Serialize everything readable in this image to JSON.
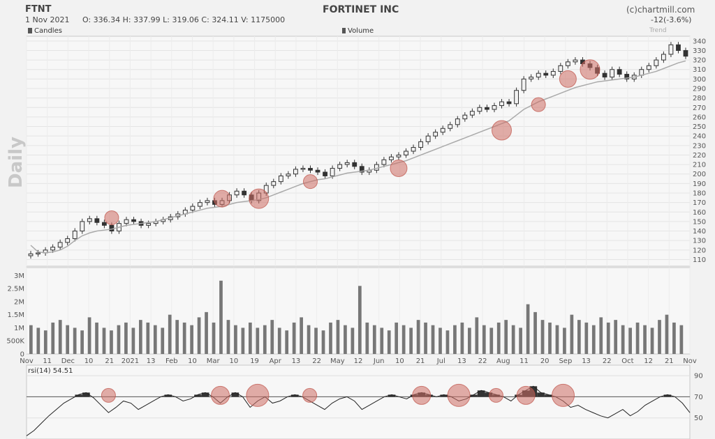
{
  "header": {
    "ticker": "FTNT",
    "company": "FORTINET INC",
    "credit": "(c)chartmill.com",
    "date": "1 Nov 2021",
    "ohlcv": "O: 336.34  H: 337.99  L: 319.06  C: 324.11  V: 1175000",
    "change": "-12(-3.6%)",
    "side_label": "Daily"
  },
  "legend": {
    "candles": "Candles",
    "volume": "Volume",
    "trend": "Trend"
  },
  "rsi_label": "rsi(14) 54.51",
  "chart_data": [
    {
      "type": "candlestick",
      "panel": "price",
      "ylim": [
        103,
        345
      ],
      "yticks": [
        110,
        120,
        130,
        140,
        150,
        160,
        170,
        180,
        190,
        200,
        210,
        220,
        230,
        240,
        250,
        260,
        270,
        280,
        290,
        300,
        310,
        320,
        330,
        340
      ],
      "x_range": [
        "Nov 2020",
        "Nov 1 2021"
      ],
      "xticks": [
        "Nov",
        "11",
        "Dec",
        "10",
        "21",
        "2021",
        "13",
        "Feb",
        "10",
        "Mar",
        "10",
        "19",
        "Apr",
        "13",
        "22",
        "May",
        "12",
        "Jun",
        "10",
        "21",
        "Jul",
        "13",
        "22",
        "Aug",
        "11",
        "20",
        "Sep",
        "13",
        "22",
        "Oct",
        "12",
        "21",
        "Nov"
      ],
      "close_series": [
        116,
        117,
        120,
        123,
        128,
        132,
        140,
        150,
        153,
        149,
        146,
        140,
        148,
        152,
        150,
        146,
        148,
        150,
        152,
        155,
        158,
        162,
        166,
        170,
        172,
        168,
        172,
        178,
        182,
        178,
        172,
        180,
        188,
        192,
        198,
        200,
        205,
        206,
        204,
        202,
        198,
        206,
        210,
        212,
        208,
        202,
        204,
        210,
        215,
        218,
        220,
        224,
        228,
        234,
        240,
        244,
        248,
        252,
        258,
        262,
        266,
        270,
        268,
        272,
        276,
        274,
        288,
        300,
        302,
        306,
        304,
        308,
        314,
        318,
        320,
        316,
        312,
        306,
        302,
        310,
        305,
        300,
        304,
        310,
        314,
        320,
        326,
        336,
        330,
        324
      ],
      "trend_series": [
        125,
        118,
        117,
        118,
        120,
        124,
        130,
        135,
        138,
        140,
        141,
        142,
        144,
        146,
        147,
        148,
        149,
        150,
        152,
        154,
        156,
        158,
        160,
        162,
        164,
        165,
        166,
        168,
        170,
        171,
        172,
        173,
        175,
        178,
        181,
        184,
        187,
        190,
        192,
        194,
        195,
        197,
        199,
        201,
        202,
        203,
        204,
        206,
        208,
        210,
        212,
        214,
        217,
        220,
        223,
        226,
        229,
        232,
        235,
        238,
        241,
        244,
        247,
        250,
        253,
        256,
        262,
        268,
        272,
        276,
        279,
        282,
        285,
        288,
        291,
        293,
        295,
        297,
        298,
        299,
        300,
        301,
        302,
        304,
        306,
        308,
        311,
        314,
        317,
        319
      ],
      "highlights": [
        154,
        174,
        174,
        192,
        206,
        246,
        273,
        300,
        310
      ],
      "series": [
        {
          "name": "Candles"
        },
        {
          "name": "Trend"
        }
      ]
    },
    {
      "type": "bar",
      "panel": "volume",
      "ylabel": "Volume",
      "ytick_labels": [
        "0",
        "500K",
        "1M",
        "1.5M",
        "2M",
        "2.5M",
        "3M"
      ],
      "ylim": [
        0,
        3300000
      ],
      "values": [
        1.1,
        1.0,
        0.9,
        1.2,
        1.3,
        1.1,
        1.0,
        0.9,
        1.4,
        1.2,
        1.0,
        0.9,
        1.1,
        1.2,
        1.0,
        1.3,
        1.2,
        1.1,
        1.0,
        1.5,
        1.3,
        1.2,
        1.1,
        1.4,
        1.6,
        1.2,
        2.8,
        1.3,
        1.1,
        1.0,
        1.2,
        1.0,
        1.1,
        1.3,
        1.0,
        0.9,
        1.2,
        1.4,
        1.1,
        1.0,
        0.9,
        1.2,
        1.3,
        1.1,
        1.0,
        2.6,
        1.2,
        1.1,
        1.0,
        0.9,
        1.2,
        1.1,
        1.0,
        1.3,
        1.2,
        1.1,
        1.0,
        0.9,
        1.1,
        1.2,
        1.0,
        1.4,
        1.1,
        1.0,
        1.2,
        1.3,
        1.1,
        1.0,
        1.9,
        1.6,
        1.3,
        1.2,
        1.1,
        1.0,
        1.5,
        1.3,
        1.2,
        1.1,
        1.4,
        1.2,
        1.3,
        1.1,
        1.0,
        1.2,
        1.1,
        1.0,
        1.3,
        1.5,
        1.2,
        1.1
      ]
    },
    {
      "type": "line",
      "panel": "rsi",
      "ylim": [
        30,
        100
      ],
      "yticks": [
        50,
        70,
        90
      ],
      "threshold": 70,
      "values": [
        33,
        38,
        45,
        52,
        58,
        64,
        68,
        72,
        74,
        69,
        62,
        55,
        60,
        66,
        64,
        58,
        62,
        66,
        70,
        72,
        70,
        66,
        68,
        72,
        74,
        70,
        64,
        70,
        74,
        70,
        60,
        66,
        70,
        64,
        66,
        70,
        72,
        70,
        66,
        62,
        58,
        64,
        68,
        70,
        66,
        58,
        62,
        66,
        70,
        72,
        70,
        68,
        72,
        74,
        72,
        70,
        72,
        70,
        66,
        68,
        72,
        76,
        74,
        72,
        70,
        66,
        72,
        76,
        80,
        74,
        72,
        70,
        66,
        60,
        62,
        58,
        55,
        52,
        50,
        54,
        58,
        52,
        56,
        62,
        66,
        70,
        72,
        70,
        64,
        55
      ],
      "highlight_indices": [
        11,
        26,
        31,
        38,
        53,
        58,
        63,
        67,
        72
      ]
    }
  ]
}
